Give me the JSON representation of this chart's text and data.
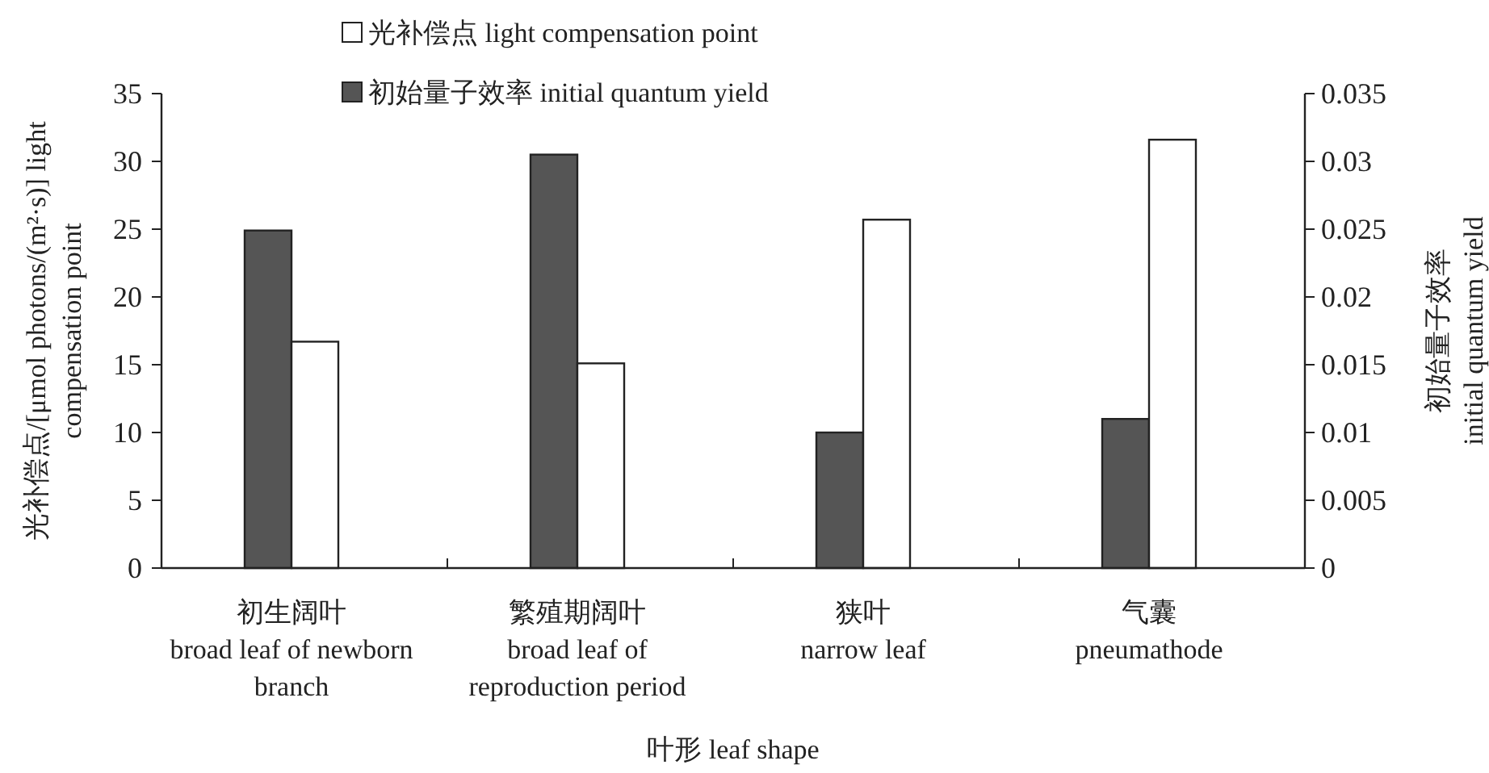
{
  "chart_data": {
    "type": "bar",
    "xlabel": "叶形 leaf shape",
    "ylabel": "光补偿点/[μmol photons/(m²·s)] light compensation point",
    "y2label": "初始量子效率 initial quantum yield",
    "categories": [
      "初生阔叶 broad leaf of newborn branch",
      "繁殖期阔叶 broad leaf of reproduction period",
      "狭叶 narrow leaf",
      "气囊 pneumathode"
    ],
    "series": [
      {
        "name": "初始量子效率 initial quantum yield",
        "color": "#555555",
        "axis": "y2",
        "values": [
          0.0249,
          0.0305,
          0.01,
          0.011
        ]
      },
      {
        "name": "光补偿点 light compensation point",
        "color": "#ffffff",
        "values": [
          16.7,
          15.1,
          25.7,
          31.6
        ]
      }
    ],
    "ylim": [
      0,
      35
    ],
    "yticks": [
      0,
      5,
      10,
      15,
      20,
      25,
      30,
      35
    ],
    "y2lim": [
      0,
      0.035
    ],
    "y2ticks": [
      0,
      0.005,
      0.01,
      0.015,
      0.02,
      0.025,
      0.03,
      0.035
    ],
    "legend": "top",
    "grid": false
  }
}
